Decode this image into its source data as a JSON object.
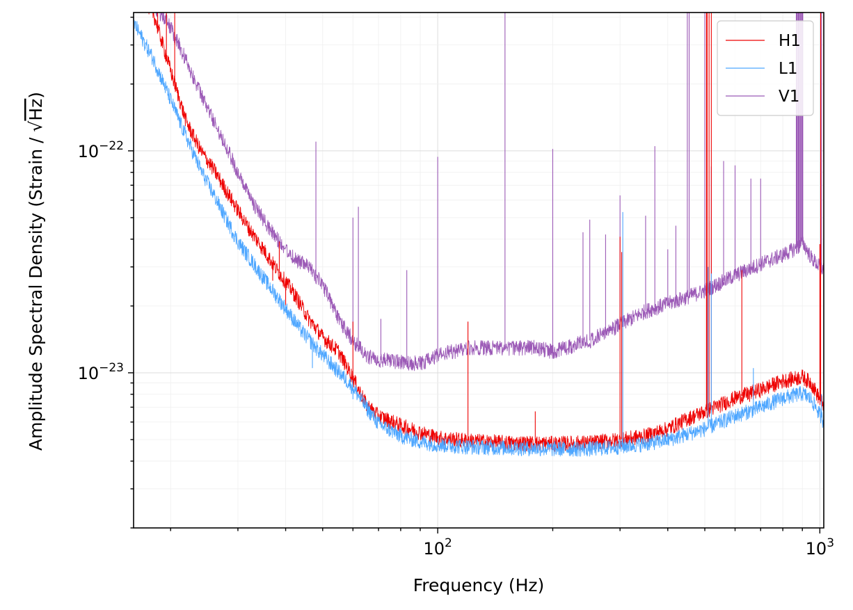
{
  "chart_data": {
    "type": "line",
    "xlabel": "Frequency (Hz)",
    "ylabel_prefix": "Amplitude Spectral Density (Strain / ",
    "ylabel_radical": "√",
    "ylabel_radicand": "Hz",
    "ylabel_suffix": ")",
    "xscale": "log",
    "yscale": "log",
    "xlim": [
      16,
      1024
    ],
    "ylim": [
      2e-24,
      4.2e-22
    ],
    "grid": true,
    "legend": "top-right",
    "x_ticks": [
      {
        "value": 100,
        "base": "10",
        "exp": "2"
      },
      {
        "value": 1000,
        "base": "10",
        "exp": "3"
      }
    ],
    "y_ticks": [
      {
        "value": 1e-23,
        "base": "10",
        "exp": "−23"
      },
      {
        "value": 1e-22,
        "base": "10",
        "exp": "−22"
      }
    ],
    "series": [
      {
        "name": "H1",
        "color": "#ee0000",
        "points": [
          [
            16,
            5.5e-22
          ],
          [
            18,
            4.2e-22
          ],
          [
            20,
            2.3e-22
          ],
          [
            22,
            1.35e-22
          ],
          [
            24,
            1e-22
          ],
          [
            26,
            8.2e-23
          ],
          [
            28,
            6.6e-23
          ],
          [
            30,
            5.4e-23
          ],
          [
            32,
            4.5e-23
          ],
          [
            35,
            3.6e-23
          ],
          [
            38,
            2.9e-23
          ],
          [
            42,
            2.3e-23
          ],
          [
            46,
            1.75e-23
          ],
          [
            50,
            1.45e-23
          ],
          [
            55,
            1.25e-23
          ],
          [
            60,
            9.5e-24
          ],
          [
            65,
            7.2e-24
          ],
          [
            70,
            6.4e-24
          ],
          [
            80,
            5.8e-24
          ],
          [
            90,
            5.4e-24
          ],
          [
            100,
            5.1e-24
          ],
          [
            120,
            4.95e-24
          ],
          [
            150,
            4.85e-24
          ],
          [
            200,
            4.8e-24
          ],
          [
            250,
            4.85e-24
          ],
          [
            300,
            5e-24
          ],
          [
            350,
            5.2e-24
          ],
          [
            400,
            5.6e-24
          ],
          [
            450,
            6.2e-24
          ],
          [
            500,
            6.7e-24
          ],
          [
            550,
            7.2e-24
          ],
          [
            600,
            7.7e-24
          ],
          [
            700,
            8.4e-24
          ],
          [
            800,
            9.2e-24
          ],
          [
            900,
            9.6e-24
          ],
          [
            950,
            9e-24
          ],
          [
            1000,
            7.6e-24
          ],
          [
            1024,
            7.2e-24
          ]
        ],
        "lines": [
          [
            18.5,
            4.5e-22
          ],
          [
            19.5,
            4.5e-22
          ],
          [
            20.5,
            4.5e-22
          ],
          [
            31,
            4.7e-23
          ],
          [
            33,
            4.3e-23
          ],
          [
            37,
            2.6e-23
          ],
          [
            38.5,
            3.9e-23
          ],
          [
            40,
            2e-23
          ],
          [
            42,
            2.1e-23
          ],
          [
            45,
            1.9e-23
          ],
          [
            60,
            1.7e-23
          ],
          [
            120,
            1.7e-23
          ],
          [
            180,
            6.7e-24
          ],
          [
            300,
            4.1e-23
          ],
          [
            303,
            3.5e-23
          ],
          [
            315,
            5.2e-24
          ],
          [
            505,
            4.5e-22
          ],
          [
            507,
            4.5e-22
          ],
          [
            513,
            4.5e-22
          ],
          [
            520,
            4.5e-22
          ],
          [
            625,
            2.9e-23
          ],
          [
            655,
            7.4e-24
          ],
          [
            1000,
            3.8e-23
          ],
          [
            1005,
            4.5e-22
          ]
        ]
      },
      {
        "name": "L1",
        "color": "#4da6ff",
        "points": [
          [
            16,
            3.8e-22
          ],
          [
            18,
            2.6e-22
          ],
          [
            20,
            1.7e-22
          ],
          [
            22,
            1.15e-22
          ],
          [
            24,
            8.2e-23
          ],
          [
            26,
            6.3e-23
          ],
          [
            28,
            4.9e-23
          ],
          [
            30,
            3.9e-23
          ],
          [
            33,
            3.1e-23
          ],
          [
            36,
            2.5e-23
          ],
          [
            40,
            1.95e-23
          ],
          [
            44,
            1.55e-23
          ],
          [
            48,
            1.3e-23
          ],
          [
            52,
            1.12e-23
          ],
          [
            56,
            9.8e-24
          ],
          [
            60,
            8.6e-24
          ],
          [
            65,
            7e-24
          ],
          [
            70,
            5.9e-24
          ],
          [
            80,
            5.2e-24
          ],
          [
            90,
            4.9e-24
          ],
          [
            100,
            4.75e-24
          ],
          [
            120,
            4.65e-24
          ],
          [
            150,
            4.6e-24
          ],
          [
            200,
            4.55e-24
          ],
          [
            250,
            4.55e-24
          ],
          [
            300,
            4.65e-24
          ],
          [
            350,
            4.8e-24
          ],
          [
            400,
            5e-24
          ],
          [
            450,
            5.3e-24
          ],
          [
            500,
            5.6e-24
          ],
          [
            550,
            6e-24
          ],
          [
            600,
            6.4e-24
          ],
          [
            700,
            7e-24
          ],
          [
            800,
            7.7e-24
          ],
          [
            900,
            8.1e-24
          ],
          [
            950,
            7.6e-24
          ],
          [
            1000,
            6.5e-24
          ],
          [
            1024,
            6e-24
          ]
        ],
        "lines": [
          [
            47,
            1.05e-23
          ],
          [
            60,
            7.6e-24
          ],
          [
            305,
            5.3e-23
          ],
          [
            315,
            4.9e-24
          ],
          [
            510,
            3e-23
          ],
          [
            520,
            2.8e-23
          ],
          [
            670,
            1.05e-23
          ],
          [
            1010,
            8e-24
          ]
        ]
      },
      {
        "name": "V1",
        "color": "#9b59b6",
        "points": [
          [
            16,
            5.8e-22
          ],
          [
            18,
            4.6e-22
          ],
          [
            20,
            3.6e-22
          ],
          [
            22,
            2.55e-22
          ],
          [
            24,
            1.8e-22
          ],
          [
            26,
            1.35e-22
          ],
          [
            28,
            1.05e-22
          ],
          [
            30,
            7.9e-23
          ],
          [
            32,
            6.3e-23
          ],
          [
            35,
            4.9e-23
          ],
          [
            38,
            4e-23
          ],
          [
            42,
            3.3e-23
          ],
          [
            46,
            3e-23
          ],
          [
            50,
            2.5e-23
          ],
          [
            55,
            1.75e-23
          ],
          [
            60,
            1.4e-23
          ],
          [
            65,
            1.2e-23
          ],
          [
            70,
            1.15e-23
          ],
          [
            80,
            1.12e-23
          ],
          [
            90,
            1.1e-23
          ],
          [
            100,
            1.2e-23
          ],
          [
            120,
            1.3e-23
          ],
          [
            150,
            1.3e-23
          ],
          [
            180,
            1.3e-23
          ],
          [
            200,
            1.25e-23
          ],
          [
            250,
            1.4e-23
          ],
          [
            300,
            1.65e-23
          ],
          [
            350,
            1.9e-23
          ],
          [
            400,
            2.05e-23
          ],
          [
            450,
            2.2e-23
          ],
          [
            500,
            2.35e-23
          ],
          [
            550,
            2.55e-23
          ],
          [
            600,
            2.75e-23
          ],
          [
            700,
            3.1e-23
          ],
          [
            800,
            3.4e-23
          ],
          [
            880,
            3.7e-23
          ],
          [
            900,
            3.9e-23
          ],
          [
            950,
            3.3e-23
          ],
          [
            1000,
            3e-23
          ],
          [
            1024,
            2.9e-23
          ]
        ],
        "lines": [
          [
            48,
            1.1e-22
          ],
          [
            60,
            5e-23
          ],
          [
            62,
            5.6e-23
          ],
          [
            71,
            1.75e-23
          ],
          [
            83,
            2.9e-23
          ],
          [
            100,
            9.4e-23
          ],
          [
            150,
            4.5e-22
          ],
          [
            200,
            1.02e-22
          ],
          [
            240,
            4.3e-23
          ],
          [
            250,
            4.9e-23
          ],
          [
            275,
            4.2e-23
          ],
          [
            300,
            6.3e-23
          ],
          [
            350,
            5.1e-23
          ],
          [
            370,
            1.05e-22
          ],
          [
            400,
            3.6e-23
          ],
          [
            420,
            4.6e-23
          ],
          [
            450,
            4.5e-22
          ],
          [
            455,
            4.5e-22
          ],
          [
            500,
            4.5e-22
          ],
          [
            520,
            8.5e-23
          ],
          [
            560,
            9e-23
          ],
          [
            600,
            8.6e-23
          ],
          [
            660,
            7.5e-23
          ],
          [
            700,
            7.5e-23
          ],
          [
            1010,
            4.5e-22
          ]
        ],
        "band": {
          "x": [
            870,
            900
          ],
          "top": 4.5e-22
        }
      }
    ]
  }
}
